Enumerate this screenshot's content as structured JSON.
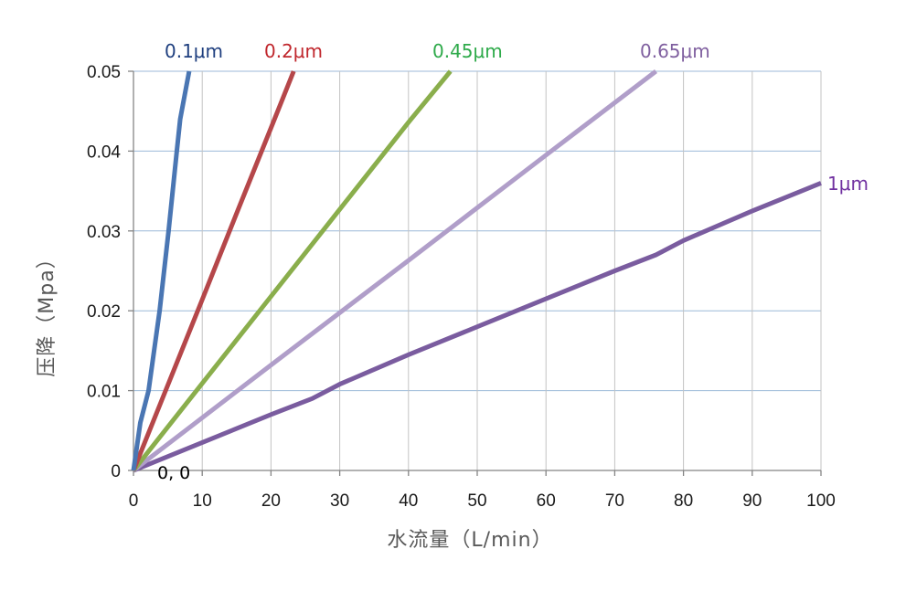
{
  "chart_data": {
    "type": "line",
    "xlabel": "水流量（L/min）",
    "ylabel": "压降（Mpa）",
    "xlim": [
      0,
      100
    ],
    "ylim": [
      0,
      0.05
    ],
    "x_ticks": [
      "0",
      "10",
      "20",
      "30",
      "40",
      "50",
      "60",
      "70",
      "80",
      "90",
      "100"
    ],
    "y_ticks": [
      "0",
      "0.01",
      "0.02",
      "0.03",
      "0.04",
      "0.05"
    ],
    "grid": true,
    "legend": "none",
    "series": [
      {
        "name": "0.1μm",
        "color": "#4a76b3",
        "label_color": "#1f3f7f",
        "points": [
          [
            0,
            0
          ],
          [
            1.0,
            0.006
          ],
          [
            2.2,
            0.01
          ],
          [
            3.8,
            0.02
          ],
          [
            5.1,
            0.03
          ],
          [
            6.3,
            0.04
          ],
          [
            6.8,
            0.044
          ],
          [
            8.1,
            0.05
          ]
        ]
      },
      {
        "name": "0.2μm",
        "color": "#b5474a",
        "label_color": "#c0272d",
        "points": [
          [
            0,
            0
          ],
          [
            5,
            0.0107
          ],
          [
            10,
            0.0214
          ],
          [
            15,
            0.0322
          ],
          [
            20,
            0.0429
          ],
          [
            23.3,
            0.05
          ]
        ]
      },
      {
        "name": "0.45μm",
        "color": "#8aae4c",
        "label_color": "#2eaa4a",
        "points": [
          [
            0,
            0
          ],
          [
            10,
            0.0109
          ],
          [
            20,
            0.0218
          ],
          [
            30,
            0.0327
          ],
          [
            40,
            0.0436
          ],
          [
            46.1,
            0.05
          ]
        ]
      },
      {
        "name": "0.65μm",
        "color": "#b09ec9",
        "label_color": "#7f5f9f",
        "points": [
          [
            0,
            0
          ],
          [
            20,
            0.0132
          ],
          [
            40,
            0.0263
          ],
          [
            60,
            0.0395
          ],
          [
            76,
            0.05
          ]
        ]
      },
      {
        "name": "1μm",
        "color": "#7a5c9f",
        "label_color": "#7030a0",
        "points": [
          [
            0,
            0
          ],
          [
            10,
            0.0035
          ],
          [
            20,
            0.007
          ],
          [
            26,
            0.009
          ],
          [
            30,
            0.0108
          ],
          [
            40,
            0.0145
          ],
          [
            50,
            0.018
          ],
          [
            60,
            0.0215
          ],
          [
            70,
            0.025
          ],
          [
            76,
            0.027
          ],
          [
            80,
            0.0288
          ],
          [
            90,
            0.0325
          ],
          [
            100,
            0.036
          ]
        ]
      }
    ],
    "annotations": [
      {
        "text": "0, 0",
        "x": 0,
        "y": 0
      }
    ]
  }
}
